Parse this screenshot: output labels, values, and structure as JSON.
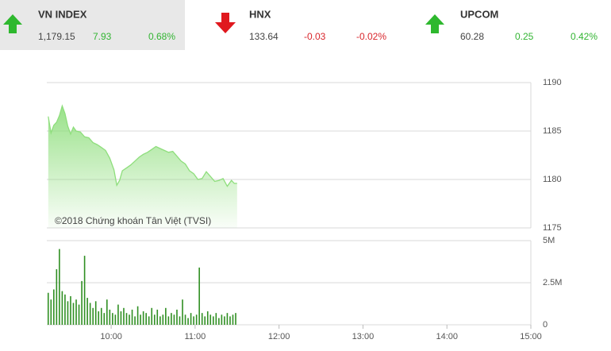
{
  "indices": [
    {
      "name": "VN INDEX",
      "value": "1,179.15",
      "change": "7.93",
      "percent": "0.68%",
      "direction": "up",
      "color": "#33b533",
      "selected": true
    },
    {
      "name": "HNX",
      "value": "133.64",
      "change": "-0.03",
      "percent": "-0.02%",
      "direction": "down",
      "color": "#d9262c",
      "selected": false
    },
    {
      "name": "UPCOM",
      "value": "60.28",
      "change": "0.25",
      "percent": "0.42%",
      "direction": "up",
      "color": "#33b533",
      "selected": false
    }
  ],
  "chart_data": [
    {
      "type": "area",
      "watermark": "©2018 Chứng khoán Tân Việt (TVSI)",
      "color": "#8ede7c",
      "x": [
        "9:15",
        "9:17",
        "9:19",
        "9:21",
        "9:23",
        "9:25",
        "9:27",
        "9:29",
        "9:31",
        "9:33",
        "9:35",
        "9:38",
        "9:41",
        "9:44",
        "9:47",
        "9:50",
        "9:53",
        "9:56",
        "9:59",
        "10:02",
        "10:04",
        "10:06",
        "10:08",
        "10:11",
        "10:14",
        "10:17",
        "10:20",
        "10:23",
        "10:26",
        "10:29",
        "10:32",
        "10:35",
        "10:38",
        "10:41",
        "10:44",
        "10:47",
        "10:50",
        "10:53",
        "10:56",
        "10:59",
        "11:02",
        "11:05",
        "11:08",
        "11:11",
        "11:14",
        "11:17",
        "11:20",
        "11:23",
        "11:26",
        "11:28",
        "11:30"
      ],
      "values": [
        1186.5,
        1184.8,
        1185.6,
        1185.9,
        1186.6,
        1187.6,
        1186.8,
        1185.5,
        1184.7,
        1185.4,
        1185.0,
        1184.9,
        1184.4,
        1184.3,
        1183.8,
        1183.6,
        1183.3,
        1183.0,
        1182.2,
        1181.0,
        1179.4,
        1179.9,
        1180.9,
        1181.2,
        1181.5,
        1181.9,
        1182.3,
        1182.6,
        1182.8,
        1183.1,
        1183.4,
        1183.2,
        1183.0,
        1182.8,
        1182.9,
        1182.4,
        1181.9,
        1181.6,
        1180.9,
        1180.6,
        1180.0,
        1180.1,
        1180.8,
        1180.3,
        1179.8,
        1179.9,
        1180.1,
        1179.3,
        1179.9,
        1179.6,
        1179.6
      ],
      "xlim": [
        "9:14",
        "15:00"
      ],
      "ylim": [
        1175,
        1190
      ],
      "yticks": [
        1175,
        1180,
        1185,
        1190
      ],
      "grid": true
    },
    {
      "type": "bar",
      "color": "#2f8f22",
      "x": [
        "9:15",
        "9:17",
        "9:19",
        "9:21",
        "9:23",
        "9:25",
        "9:27",
        "9:29",
        "9:31",
        "9:33",
        "9:35",
        "9:37",
        "9:39",
        "9:41",
        "9:43",
        "9:45",
        "9:47",
        "9:49",
        "9:51",
        "9:53",
        "9:55",
        "9:57",
        "9:59",
        "10:01",
        "10:03",
        "10:05",
        "10:07",
        "10:09",
        "10:11",
        "10:13",
        "10:15",
        "10:17",
        "10:19",
        "10:21",
        "10:23",
        "10:25",
        "10:27",
        "10:29",
        "10:31",
        "10:33",
        "10:35",
        "10:37",
        "10:39",
        "10:41",
        "10:43",
        "10:45",
        "10:47",
        "10:49",
        "10:51",
        "10:53",
        "10:55",
        "10:57",
        "10:59",
        "11:01",
        "11:03",
        "11:05",
        "11:07",
        "11:09",
        "11:11",
        "11:13",
        "11:15",
        "11:17",
        "11:19",
        "11:21",
        "11:23",
        "11:25",
        "11:27",
        "11:29"
      ],
      "values": [
        1900000,
        1500000,
        2100000,
        3300000,
        4500000,
        2000000,
        1800000,
        1400000,
        1700000,
        1300000,
        1500000,
        1200000,
        2600000,
        4100000,
        1600000,
        1300000,
        1000000,
        1400000,
        800000,
        1000000,
        700000,
        1500000,
        900000,
        700000,
        600000,
        1200000,
        800000,
        1000000,
        700000,
        600000,
        900000,
        500000,
        1100000,
        600000,
        800000,
        700000,
        500000,
        1000000,
        600000,
        900000,
        500000,
        600000,
        1000000,
        500000,
        700000,
        600000,
        900000,
        500000,
        1500000,
        600000,
        400000,
        700000,
        500000,
        600000,
        3400000,
        700000,
        500000,
        800000,
        600000,
        500000,
        700000,
        400000,
        600000,
        500000,
        700000,
        500000,
        600000,
        700000
      ],
      "xlim": [
        "9:14",
        "15:00"
      ],
      "ylim": [
        0,
        5000000
      ],
      "yticks": [
        0,
        {
          "value": 2500000,
          "label": "2.5M"
        },
        {
          "value": 5000000,
          "label": "5M"
        }
      ],
      "xticks": [
        "10:00",
        "11:00",
        "12:00",
        "13:00",
        "14:00",
        "15:00"
      ],
      "grid": true
    }
  ]
}
